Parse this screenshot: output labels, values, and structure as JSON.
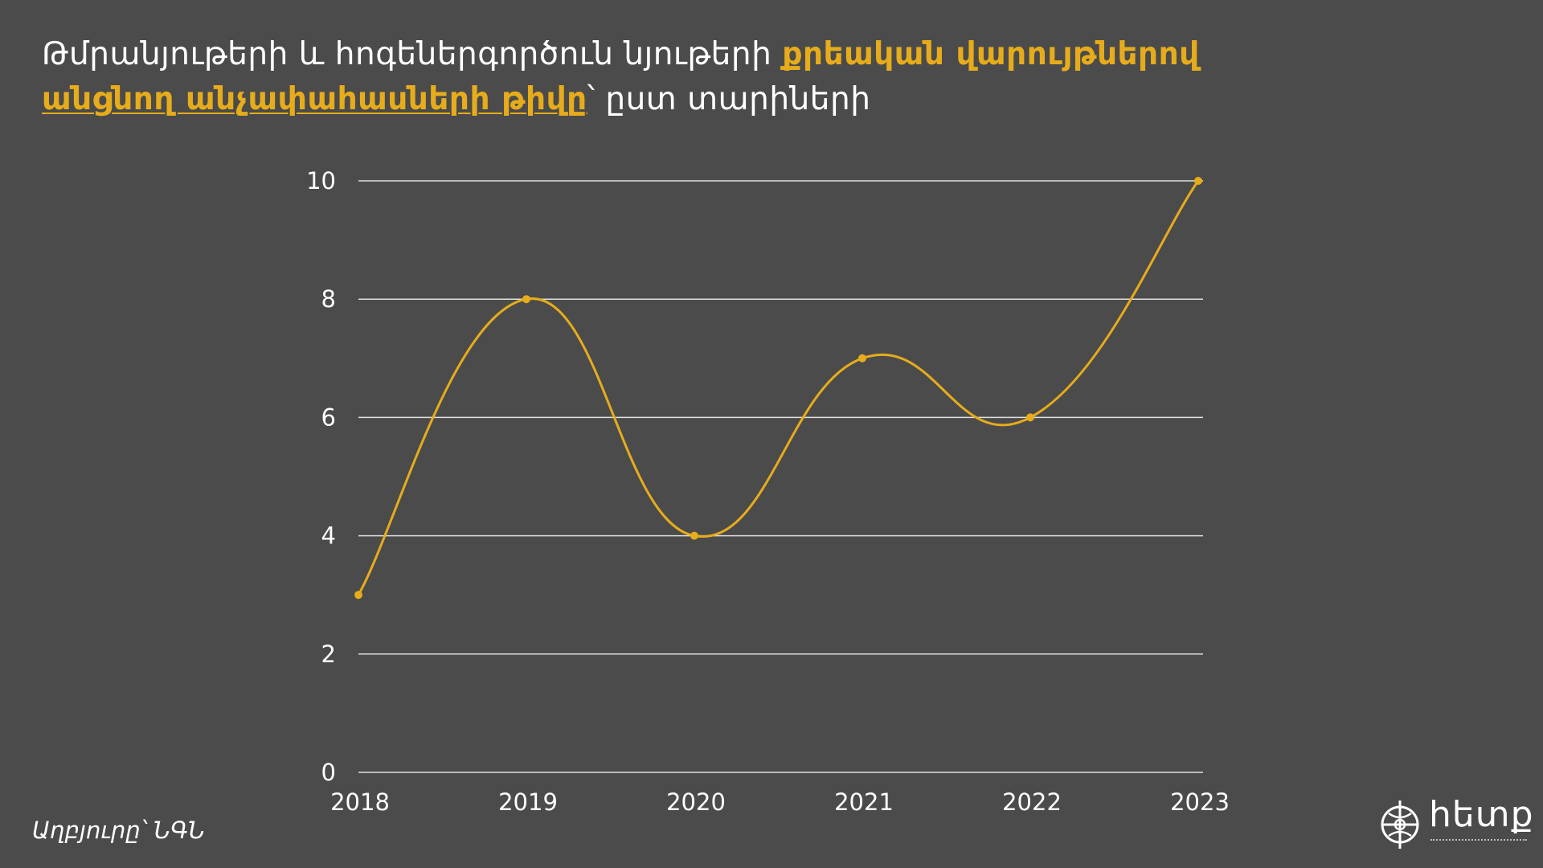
{
  "title": {
    "part1": "Թմրանյութերի և հոգեներգործուն նյութերի ",
    "part2": "քրեական վարույթներով",
    "part3": "անցնող անչափահասների թիվը",
    "part4": "՝ ըստ տարիների"
  },
  "source": "Աղբյուրը՝ ՆԳՆ",
  "logo": {
    "text": "hետք",
    "icon": "globe-target-icon"
  },
  "colors": {
    "background": "#4b4b4b",
    "accent": "#e6ac1b",
    "grid": "#e0e0e0",
    "text": "#ffffff"
  },
  "chart_data": {
    "type": "line",
    "smooth": true,
    "x": [
      "2018",
      "2019",
      "2020",
      "2021",
      "2022",
      "2023"
    ],
    "series": [
      {
        "values": [
          3,
          8,
          4,
          7,
          6,
          10
        ],
        "color": "#e6ac1b",
        "markers": true
      }
    ],
    "yticks": [
      0,
      2,
      4,
      6,
      8,
      10
    ],
    "ylim": [
      0,
      10
    ],
    "grid": "horizontal",
    "legend": "none"
  }
}
